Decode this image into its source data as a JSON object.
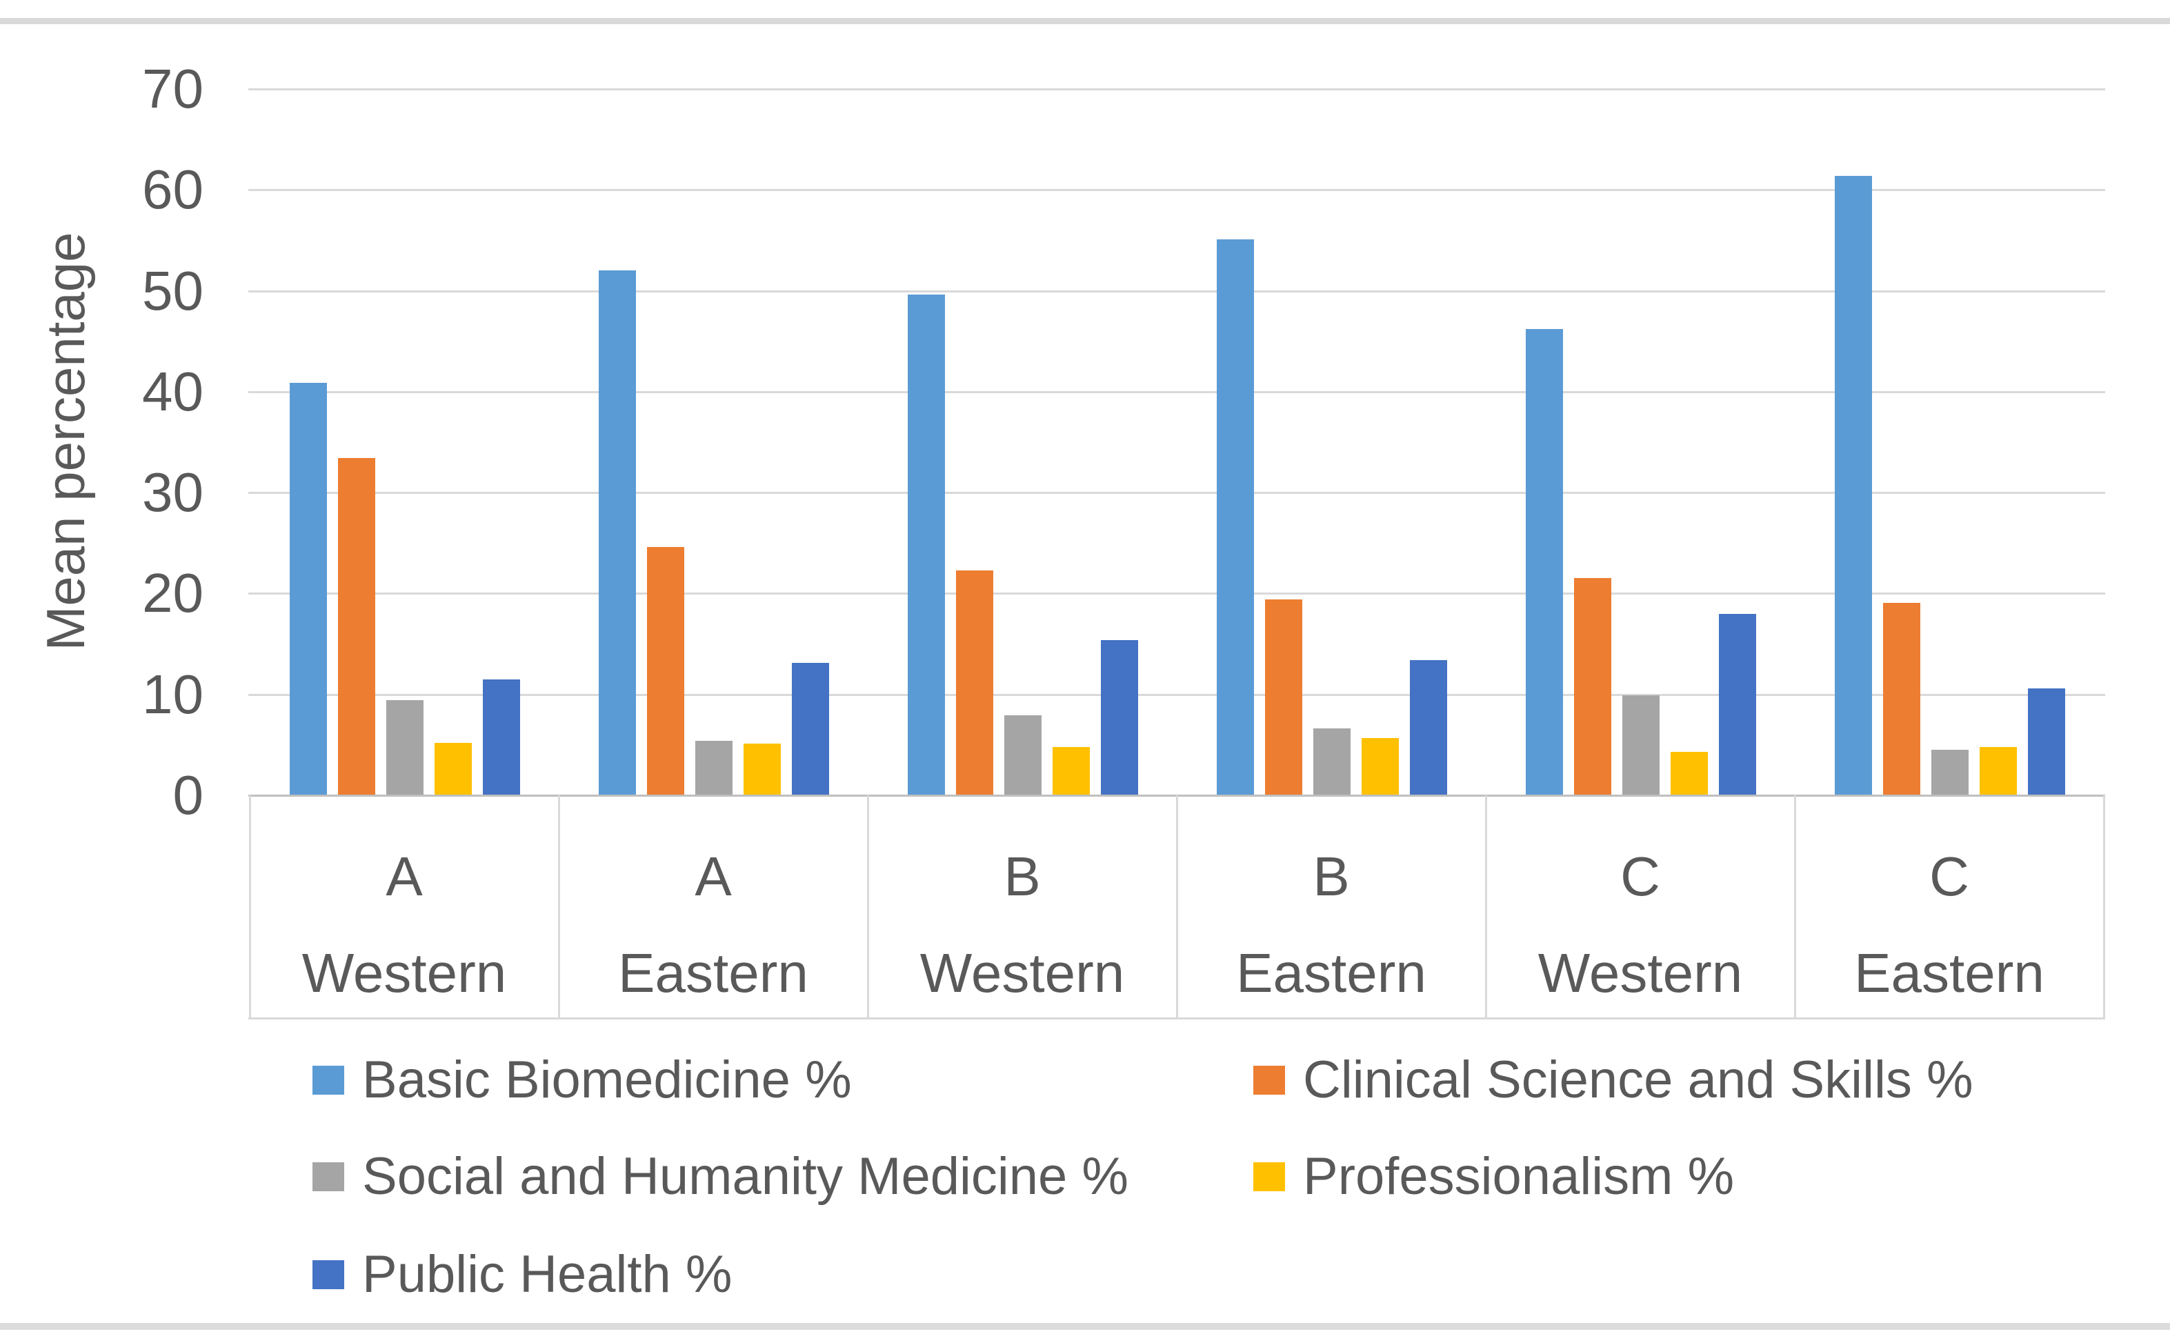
{
  "figure": {
    "background_color": "#ffffff",
    "top_strip_color": "#d9d9d9",
    "bottom_strip_color": "#dcdcdc",
    "text_color": "#595959",
    "gridline_color": "#d9d9d9",
    "axis_line_color": "#bfbfbf",
    "table_border_color": "#d9d9d9"
  },
  "chart_data": {
    "type": "bar",
    "title": "",
    "xlabel": "",
    "ylabel": "Mean percentage",
    "ylim": [
      0,
      70
    ],
    "yticks": [
      0,
      10,
      20,
      30,
      40,
      50,
      60,
      70
    ],
    "grid": true,
    "legend_position": "bottom",
    "categories": [
      {
        "program": "A",
        "region": "Western"
      },
      {
        "program": "A",
        "region": "Eastern"
      },
      {
        "program": "B",
        "region": "Western"
      },
      {
        "program": "B",
        "region": "Eastern"
      },
      {
        "program": "C",
        "region": "Western"
      },
      {
        "program": "C",
        "region": "Eastern"
      }
    ],
    "series": [
      {
        "name": "Basic Biomedicine %",
        "color": "#5B9BD5",
        "values": [
          40.9,
          52.0,
          49.6,
          55.1,
          46.2,
          61.4
        ]
      },
      {
        "name": "Clinical Science and Skills %",
        "color": "#ED7D31",
        "values": [
          33.4,
          24.6,
          22.3,
          19.4,
          21.5,
          19.1
        ]
      },
      {
        "name": "Social and Humanity Medicine %",
        "color": "#A5A5A5",
        "values": [
          9.4,
          5.4,
          7.9,
          6.6,
          9.9,
          4.5
        ]
      },
      {
        "name": "Professionalism %",
        "color": "#FFC000",
        "values": [
          5.2,
          5.1,
          4.8,
          5.7,
          4.3,
          4.8
        ]
      },
      {
        "name": "Public Health %",
        "color": "#4472C4",
        "values": [
          11.5,
          13.1,
          15.4,
          13.4,
          18.0,
          10.6
        ]
      }
    ],
    "legend_rows": [
      [
        0,
        1
      ],
      [
        2,
        3
      ],
      [
        4
      ]
    ]
  }
}
